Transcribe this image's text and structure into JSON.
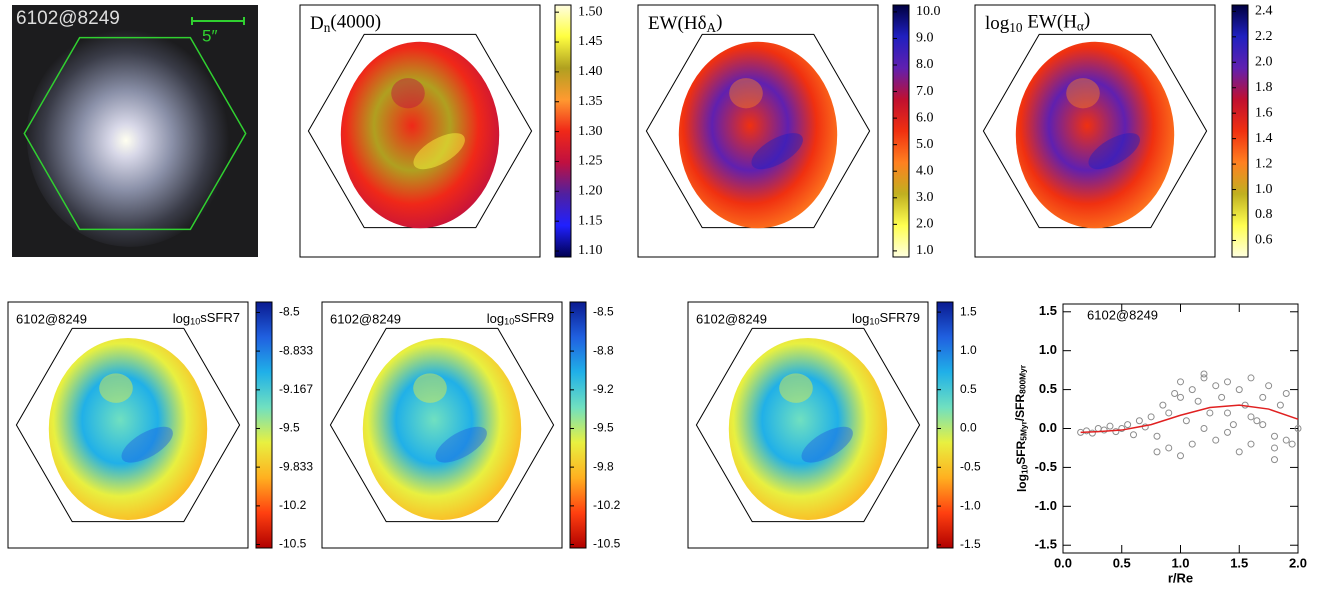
{
  "chart_data": [
    {
      "type": "image",
      "label": "6102@8249",
      "scale_label": "5″"
    },
    {
      "type": "map",
      "title": [
        "D",
        "n",
        "(4000)"
      ],
      "colors": [
        "#fffde0",
        "#ffff40",
        "#b0a020",
        "#ff9a30",
        "#f02818",
        "#c01040",
        "#5020a0",
        "#2020ff",
        "#000050"
      ],
      "ylim": [
        1.09,
        1.512
      ],
      "yticks": [
        {
          "value": 1.1,
          "label": "1.10"
        },
        1.15,
        {
          "value": 1.2,
          "label": "1.20"
        },
        1.25,
        {
          "value": 1.3,
          "label": "1.30"
        },
        1.35,
        {
          "value": 1.4,
          "label": "1.40"
        },
        1.45,
        {
          "value": 1.5,
          "label": "1.50"
        }
      ]
    },
    {
      "type": "map",
      "title": [
        "EW(Hδ",
        "A",
        ")"
      ],
      "colors": [
        "#000040",
        "#2020c0",
        "#6020b0",
        "#c01030",
        "#f03010",
        "#ff8020",
        "#c0b020",
        "#ffff50",
        "#ffffe0"
      ],
      "ylim": [
        0.77,
        10.26
      ],
      "yticks": [
        {
          "value": 1,
          "label": "1.0"
        },
        {
          "value": 2,
          "label": "2.0"
        },
        {
          "value": 3,
          "label": "3.0"
        },
        {
          "value": 4,
          "label": "4.0"
        },
        {
          "value": 5,
          "label": "5.0"
        },
        {
          "value": 6,
          "label": "6.0"
        },
        {
          "value": 7,
          "label": "7.0"
        },
        {
          "value": 8,
          "label": "8.0"
        },
        {
          "value": 9,
          "label": "9.0"
        },
        {
          "value": 10,
          "label": "10.0"
        }
      ]
    },
    {
      "type": "map",
      "title": [
        "log",
        "10",
        " EW(H",
        "α",
        ")"
      ],
      "colors": [
        "#000040",
        "#2020c0",
        "#6020b0",
        "#c01030",
        "#f03010",
        "#ff8020",
        "#c0b020",
        "#ffff50",
        "#ffffe0"
      ],
      "ylim": [
        0.47,
        2.45
      ],
      "yticks": [
        0.6,
        0.8,
        {
          "value": 1,
          "label": "1.0"
        },
        1.2,
        1.4,
        1.6,
        1.8,
        {
          "value": 2,
          "label": "2.0"
        },
        2.2,
        2.4
      ]
    },
    {
      "type": "map",
      "label": "6102@8249",
      "title": [
        "log",
        "10",
        "sSFR7"
      ],
      "colors": [
        "#0a1a90",
        "#2060e0",
        "#20b0e8",
        "#70e0c0",
        "#e8f040",
        "#ffb020",
        "#ff4010",
        "#b00000"
      ],
      "ylim": [
        -10.53,
        -8.41
      ],
      "yticks": [
        -10.5,
        {
          "value": -10.167,
          "label": "-10.2"
        },
        -9.833,
        -9.5,
        -9.167,
        -8.833,
        -8.5
      ]
    },
    {
      "type": "map",
      "label": "6102@8249",
      "title": [
        "log",
        "10",
        "sSFR9"
      ],
      "colors": [
        "#0a1a90",
        "#2060e0",
        "#20b0e8",
        "#70e0c0",
        "#e8f040",
        "#ffb020",
        "#ff4010",
        "#b00000"
      ],
      "ylim": [
        -10.53,
        -8.41
      ],
      "yticks": [
        -10.5,
        {
          "value": -10.167,
          "label": "-10.2"
        },
        {
          "value": -9.833,
          "label": "-9.8"
        },
        -9.5,
        {
          "value": -9.167,
          "label": "-9.2"
        },
        {
          "value": -8.833,
          "label": "-8.8"
        },
        -8.5
      ]
    },
    {
      "type": "map",
      "label": "6102@8249",
      "title": [
        "log",
        "10",
        "SFR79"
      ],
      "colors": [
        "#0a1a90",
        "#2060e0",
        "#20b0e8",
        "#70e0c0",
        "#e8f040",
        "#ffb020",
        "#ff4010",
        "#b00000"
      ],
      "ylim": [
        -1.54,
        1.63
      ],
      "yticks": [
        -1.5,
        {
          "value": -1,
          "label": "-1.0"
        },
        -0.5,
        {
          "value": 0,
          "label": "0.0"
        },
        0.5,
        {
          "value": 1,
          "label": "1.0"
        },
        1.5
      ]
    },
    {
      "type": "scatter",
      "label": "6102@8249",
      "y_label": [
        "log",
        "10",
        "SFR",
        "5Myr",
        "/SFR",
        "800Myr"
      ],
      "x_label": "r/Re",
      "xlim": [
        0,
        2
      ],
      "ylim": [
        -1.6,
        1.6
      ],
      "xticks": [
        {
          "value": 0,
          "label": "0.0"
        },
        0.5,
        {
          "value": 1,
          "label": "1.0"
        },
        1.5,
        {
          "value": 2,
          "label": "2.0"
        }
      ],
      "yticks": [
        -1.5,
        {
          "value": -1,
          "label": "-1.0"
        },
        -0.5,
        {
          "value": 0,
          "label": "0.0"
        },
        0.5,
        {
          "value": 1,
          "label": "1.0"
        },
        1.5
      ],
      "color": "#8c8c8c",
      "line_color": "#e02020",
      "x": [
        0.15,
        0.2,
        0.25,
        0.3,
        0.35,
        0.4,
        0.45,
        0.5,
        0.55,
        0.6,
        0.65,
        0.7,
        0.75,
        0.8,
        0.85,
        0.9,
        0.95,
        1.0,
        1.05,
        1.1,
        1.15,
        1.2,
        1.25,
        1.3,
        1.35,
        1.4,
        1.45,
        1.5,
        1.55,
        1.6,
        1.65,
        1.7,
        1.75,
        1.8,
        1.85,
        1.9,
        1.95,
        2.0,
        0.8,
        0.9,
        1.0,
        1.1,
        1.2,
        1.3,
        1.4,
        1.5,
        1.6,
        1.7,
        1.8,
        1.9,
        1.0,
        1.2,
        1.4,
        1.6,
        1.8
      ],
      "y": [
        -0.05,
        -0.03,
        -0.06,
        0.0,
        -0.02,
        0.03,
        -0.04,
        0.0,
        0.05,
        -0.08,
        0.1,
        0.02,
        0.15,
        -0.1,
        0.3,
        0.2,
        0.45,
        0.6,
        0.1,
        0.5,
        0.35,
        0.7,
        0.2,
        0.55,
        0.4,
        0.6,
        0.05,
        0.5,
        0.3,
        0.65,
        0.1,
        0.4,
        0.55,
        -0.1,
        0.3,
        0.45,
        -0.2,
        0.0,
        -0.3,
        -0.25,
        -0.35,
        -0.2,
        0.0,
        -0.15,
        -0.05,
        -0.3,
        -0.2,
        0.05,
        -0.4,
        -0.15,
        0.4,
        0.65,
        0.2,
        0.15,
        -0.25
      ],
      "line_x": [
        0.15,
        0.3,
        0.5,
        0.75,
        1.0,
        1.25,
        1.5,
        1.75,
        2.0
      ],
      "line_y": [
        -0.05,
        -0.04,
        -0.02,
        0.05,
        0.17,
        0.27,
        0.3,
        0.25,
        0.12
      ]
    }
  ]
}
